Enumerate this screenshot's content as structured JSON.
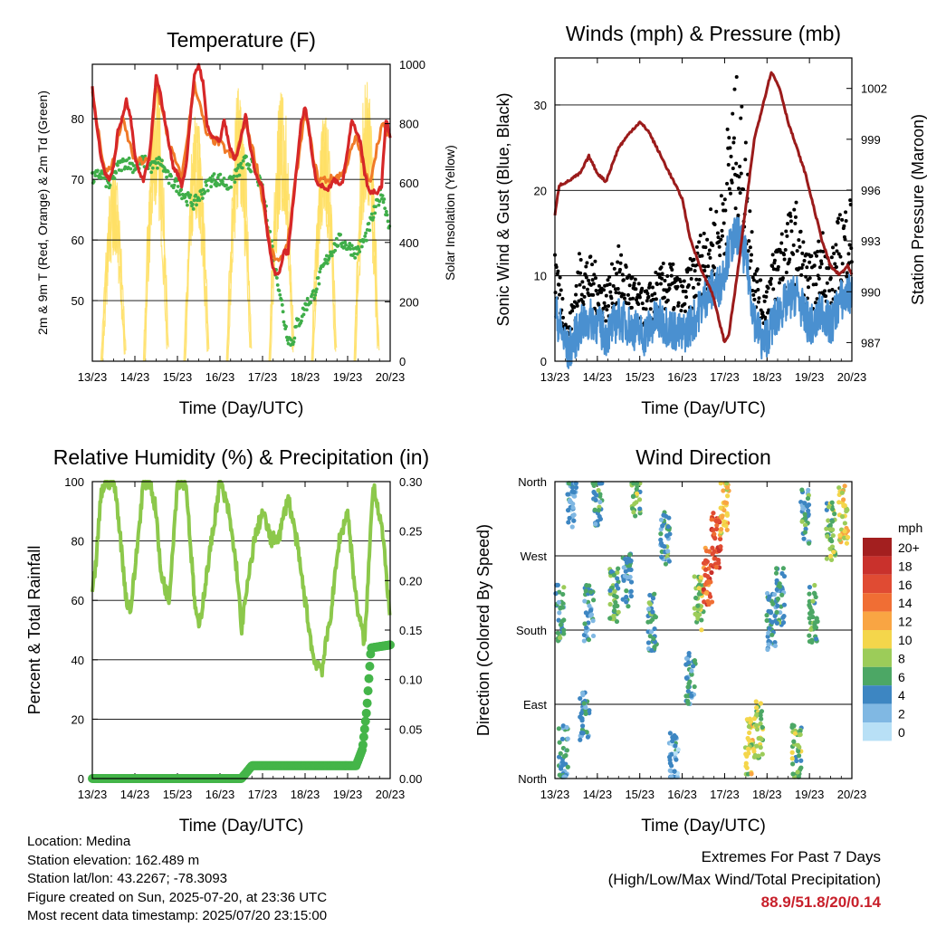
{
  "info": {
    "location": "Location: Medina",
    "elevation": "Station elevation: 162.489 m",
    "latlon": "Station lat/lon: 43.2267; -78.3093",
    "created": "Figure created on Sun, 2025-07-20, at 23:36 UTC",
    "recent": "Most recent data timestamp: 2025/07/20 23:15:00"
  },
  "extremes": {
    "title": "Extremes For Past 7 Days",
    "subtitle": "(High/Low/Max Wind/Total Precipitation)",
    "values": "88.9/51.8/20/0.14"
  },
  "colors": {
    "temp": "#d62728",
    "temp9m": "#f07a28",
    "dewpoint": "#3fae49",
    "solar": "#ffe066",
    "gust": "#000000",
    "wind": "#4a90d0",
    "pressure": "#9b1b1b",
    "rh": "#8cc84b",
    "precip": "#44b549"
  },
  "chart_data": [
    {
      "type": "line",
      "title": "Temperature (F)",
      "xlabel": "Time (Day/UTC)",
      "ylabel": "2m & 9m T (Red, Orange) & 2m Td (Green)",
      "y2label": "Solar Insolation (Yellow)",
      "x_ticks": [
        "13/23",
        "14/23",
        "15/23",
        "16/23",
        "17/23",
        "18/23",
        "19/23",
        "20/23"
      ],
      "xlim": [
        0,
        7
      ],
      "ylim": [
        40,
        89
      ],
      "y_ticks": [
        50,
        60,
        70,
        80
      ],
      "y2lim": [
        0,
        1000
      ],
      "y2_ticks": [
        0,
        200,
        400,
        600,
        800,
        1000
      ],
      "grid": true,
      "series": [
        {
          "role": "temp",
          "x": [
            0,
            0.1,
            0.2,
            0.3,
            0.4,
            0.5,
            0.6,
            0.7,
            0.8,
            0.9,
            1.0,
            1.1,
            1.2,
            1.35,
            1.5,
            1.6,
            1.7,
            1.8,
            1.9,
            2.0,
            2.1,
            2.2,
            2.3,
            2.4,
            2.5,
            2.6,
            2.7,
            2.8,
            2.9,
            3.0,
            3.1,
            3.2,
            3.35,
            3.5,
            3.6,
            3.7,
            3.8,
            3.9,
            4.0,
            4.1,
            4.2,
            4.3,
            4.4,
            4.5,
            4.6,
            4.7,
            4.8,
            4.9,
            5.0,
            5.1,
            5.2,
            5.3,
            5.4,
            5.5,
            5.6,
            5.7,
            5.8,
            5.9,
            6.0,
            6.1,
            6.2,
            6.3,
            6.4,
            6.5,
            6.6,
            6.7,
            6.8,
            6.9,
            7.0
          ],
          "y": [
            85,
            79,
            74,
            71,
            70,
            72,
            78,
            80,
            83,
            80,
            74,
            71,
            70,
            74,
            87,
            84,
            80,
            76,
            72,
            71,
            69,
            72,
            80,
            87,
            89,
            86,
            79,
            77,
            77,
            76,
            80,
            76,
            73,
            77,
            81,
            76,
            72,
            70,
            69,
            62,
            57,
            54,
            55,
            58,
            58,
            65,
            72,
            79,
            82,
            78,
            72,
            69,
            69,
            68,
            69,
            70,
            69,
            70,
            75,
            80,
            78,
            76,
            71,
            68,
            68,
            68,
            69,
            80,
            77
          ]
        },
        {
          "role": "temp9m",
          "x": [
            0,
            0.3,
            0.5,
            0.7,
            1.0,
            1.35,
            1.5,
            1.8,
            2.1,
            2.4,
            2.7,
            3.0,
            3.35,
            3.6,
            3.9,
            4.2,
            4.4,
            4.6,
            4.8,
            5.0,
            5.3,
            5.6,
            5.9,
            6.2,
            6.5,
            6.8,
            7.0
          ],
          "y": [
            84,
            71,
            73,
            80,
            73,
            73,
            86,
            76,
            70,
            86,
            77,
            76,
            73,
            80,
            71,
            58,
            56,
            60,
            71,
            81,
            70,
            70,
            71,
            77,
            69,
            79,
            77
          ]
        },
        {
          "role": "dewpoint",
          "x": [
            0,
            0.2,
            0.4,
            0.6,
            0.8,
            1.0,
            1.2,
            1.4,
            1.6,
            1.8,
            2.0,
            2.2,
            2.4,
            2.6,
            2.8,
            3.0,
            3.2,
            3.4,
            3.6,
            3.8,
            4.0,
            4.2,
            4.3,
            4.4,
            4.5,
            4.6,
            4.7,
            4.8,
            4.9,
            5.0,
            5.2,
            5.4,
            5.6,
            5.8,
            6.0,
            6.2,
            6.4,
            6.6,
            6.8,
            7.0
          ],
          "y": [
            70,
            71,
            69,
            72,
            73,
            72,
            73,
            72,
            73,
            70,
            69,
            67,
            66,
            68,
            70,
            70,
            69,
            71,
            73,
            72,
            68,
            60,
            55,
            52,
            47,
            44,
            43,
            46,
            47,
            49,
            51,
            55,
            58,
            60,
            59,
            58,
            60,
            64,
            68,
            62
          ]
        },
        {
          "role": "solar",
          "peaks_x": [
            0.5,
            1.5,
            2.45,
            3.45,
            4.45,
            5.45,
            6.45
          ],
          "peaks": [
            640,
            960,
            860,
            950,
            930,
            870,
            960
          ]
        }
      ]
    },
    {
      "type": "line",
      "title": "Winds (mph) & Pressure (mb)",
      "xlabel": "Time (Day/UTC)",
      "ylabel": "Sonic Wind & Gust (Blue, Black)",
      "y2label": "Station Pressure (Maroon)",
      "x_ticks": [
        "13/23",
        "14/23",
        "15/23",
        "16/23",
        "17/23",
        "18/23",
        "19/23",
        "20/23"
      ],
      "xlim": [
        0,
        7
      ],
      "ylim": [
        0,
        35.5
      ],
      "y_ticks": [
        0,
        10,
        20,
        30
      ],
      "y2lim": [
        985.9,
        1003.8
      ],
      "y2_ticks": [
        987,
        990,
        993,
        996,
        999,
        1002
      ],
      "grid": true,
      "series": [
        {
          "role": "gust",
          "x": [
            0,
            0.3,
            0.6,
            0.9,
            1.2,
            1.5,
            1.8,
            2.1,
            2.4,
            2.7,
            3.0,
            3.3,
            3.6,
            3.9,
            4.1,
            4.3,
            4.5,
            4.7,
            4.9,
            5.1,
            5.3,
            5.5,
            5.7,
            5.9,
            6.1,
            6.3,
            6.5,
            6.7,
            7.0
          ],
          "y": [
            11,
            3,
            10,
            9,
            7,
            10,
            8,
            6,
            8,
            9,
            7,
            10,
            13,
            14,
            22,
            25,
            20,
            10,
            6,
            9,
            12,
            13,
            14,
            10,
            9,
            12,
            9,
            13,
            15
          ]
        },
        {
          "role": "wind",
          "x": [
            0,
            0.3,
            0.6,
            0.9,
            1.2,
            1.5,
            1.8,
            2.1,
            2.4,
            2.7,
            3.0,
            3.3,
            3.6,
            3.9,
            4.1,
            4.3,
            4.5,
            4.7,
            4.9,
            5.1,
            5.3,
            5.5,
            5.7,
            5.9,
            6.1,
            6.3,
            6.5,
            6.7,
            7.0
          ],
          "y": [
            6,
            1,
            4,
            5,
            3,
            5,
            4,
            3,
            5,
            4,
            3,
            5,
            8,
            9,
            13,
            15,
            12,
            5,
            2,
            4,
            6,
            7,
            8,
            5,
            4,
            6,
            4,
            7,
            8
          ]
        },
        {
          "role": "pressure",
          "x": [
            0,
            0.1,
            0.3,
            0.6,
            0.8,
            1.0,
            1.2,
            1.5,
            1.8,
            2.0,
            2.2,
            2.5,
            2.8,
            3.0,
            3.2,
            3.5,
            3.7,
            3.9,
            4.0,
            4.1,
            4.3,
            4.5,
            4.7,
            4.9,
            5.1,
            5.3,
            5.5,
            5.7,
            5.9,
            6.1,
            6.3,
            6.5,
            6.7,
            6.9,
            7.0
          ],
          "y": [
            994.5,
            996.3,
            996.5,
            997,
            998,
            997,
            996.5,
            998.5,
            999.5,
            1000,
            999.5,
            998,
            996.5,
            995.5,
            993,
            991,
            990,
            988,
            987,
            987.5,
            991,
            995,
            999,
            1001,
            1003,
            1002,
            1000,
            998.5,
            997,
            995,
            993,
            991.5,
            991,
            991.5,
            991
          ]
        }
      ]
    },
    {
      "type": "line",
      "title": "Relative Humidity (%) & Precipitation (in)",
      "xlabel": "Time (Day/UTC)",
      "ylabel": "Percent & Total Rainfall",
      "x_ticks": [
        "13/23",
        "14/23",
        "15/23",
        "16/23",
        "17/23",
        "18/23",
        "19/23",
        "20/23"
      ],
      "xlim": [
        0,
        7
      ],
      "ylim": [
        0,
        100
      ],
      "y_ticks": [
        0,
        20,
        40,
        60,
        80,
        100
      ],
      "y2lim": [
        0,
        0.3
      ],
      "y2_ticks": [
        "0.00",
        "0.05",
        "0.10",
        "0.15",
        "0.20",
        "0.25",
        "0.30"
      ],
      "grid": true,
      "series": [
        {
          "role": "rh",
          "x": [
            0,
            0.1,
            0.2,
            0.3,
            0.4,
            0.5,
            0.6,
            0.7,
            0.8,
            0.9,
            1.0,
            1.2,
            1.35,
            1.5,
            1.6,
            1.8,
            2.0,
            2.2,
            2.3,
            2.4,
            2.5,
            2.6,
            2.8,
            3.0,
            3.2,
            3.4,
            3.5,
            3.6,
            3.8,
            4.0,
            4.2,
            4.4,
            4.6,
            4.8,
            5.0,
            5.2,
            5.4,
            5.6,
            5.8,
            6.0,
            6.2,
            6.4,
            6.6,
            6.8,
            7.0
          ],
          "y": [
            61,
            75,
            95,
            100,
            100,
            100,
            90,
            75,
            60,
            57,
            70,
            100,
            100,
            90,
            70,
            60,
            100,
            100,
            80,
            60,
            50,
            60,
            80,
            100,
            90,
            70,
            50,
            60,
            80,
            90,
            80,
            82,
            95,
            80,
            60,
            40,
            37,
            55,
            80,
            90,
            60,
            45,
            100,
            85,
            55
          ]
        },
        {
          "role": "precip",
          "x": [
            0,
            3.5,
            3.6,
            3.75,
            6.2,
            6.35,
            6.45,
            6.55,
            7.0
          ],
          "y": [
            0,
            0,
            0.005,
            0.013,
            0.013,
            0.03,
            0.07,
            0.132,
            0.135
          ]
        }
      ]
    },
    {
      "type": "scatter",
      "title": "Wind Direction",
      "xlabel": "Time (Day/UTC)",
      "ylabel": "Direction (Colored By Speed)",
      "x_ticks": [
        "13/23",
        "14/23",
        "15/23",
        "16/23",
        "17/23",
        "18/23",
        "19/23",
        "20/23"
      ],
      "xlim": [
        0,
        7
      ],
      "y_categories": [
        "North",
        "East",
        "South",
        "West",
        "North"
      ],
      "ylim": [
        0,
        360
      ],
      "grid": true,
      "colorbar": {
        "title": "mph",
        "labels": [
          "20+",
          "18",
          "16",
          "14",
          "12",
          "10",
          "8",
          "6",
          "4",
          "2",
          "0"
        ],
        "colors": [
          "#a31f1f",
          "#c9312c",
          "#e04b33",
          "#f06e34",
          "#f9a543",
          "#f4d64b",
          "#9ccc59",
          "#4ca765",
          "#3d86c2",
          "#80b8e3",
          "#b8e0f6"
        ]
      },
      "clusters": [
        {
          "x": 0.1,
          "dir": 200,
          "spd": 5
        },
        {
          "x": 0.2,
          "dir": 30,
          "spd": 4
        },
        {
          "x": 0.4,
          "dir": 340,
          "spd": 3
        },
        {
          "x": 0.7,
          "dir": 80,
          "spd": 4
        },
        {
          "x": 0.8,
          "dir": 200,
          "spd": 4
        },
        {
          "x": 1.0,
          "dir": 340,
          "spd": 5
        },
        {
          "x": 1.4,
          "dir": 220,
          "spd": 6
        },
        {
          "x": 1.7,
          "dir": 240,
          "spd": 4
        },
        {
          "x": 1.9,
          "dir": 350,
          "spd": 7
        },
        {
          "x": 2.3,
          "dir": 190,
          "spd": 5
        },
        {
          "x": 2.6,
          "dir": 290,
          "spd": 5
        },
        {
          "x": 2.8,
          "dir": 20,
          "spd": 3
        },
        {
          "x": 3.2,
          "dir": 120,
          "spd": 4
        },
        {
          "x": 3.4,
          "dir": 210,
          "spd": 8
        },
        {
          "x": 3.6,
          "dir": 245,
          "spd": 15
        },
        {
          "x": 3.8,
          "dir": 290,
          "spd": 16
        },
        {
          "x": 4.0,
          "dir": 330,
          "spd": 11
        },
        {
          "x": 4.6,
          "dir": 40,
          "spd": 9
        },
        {
          "x": 4.8,
          "dir": 60,
          "spd": 8
        },
        {
          "x": 5.1,
          "dir": 190,
          "spd": 4
        },
        {
          "x": 5.3,
          "dir": 220,
          "spd": 5
        },
        {
          "x": 5.7,
          "dir": 30,
          "spd": 7
        },
        {
          "x": 5.9,
          "dir": 320,
          "spd": 5
        },
        {
          "x": 6.1,
          "dir": 200,
          "spd": 6
        },
        {
          "x": 6.5,
          "dir": 300,
          "spd": 7
        },
        {
          "x": 6.8,
          "dir": 320,
          "spd": 10
        }
      ]
    }
  ]
}
